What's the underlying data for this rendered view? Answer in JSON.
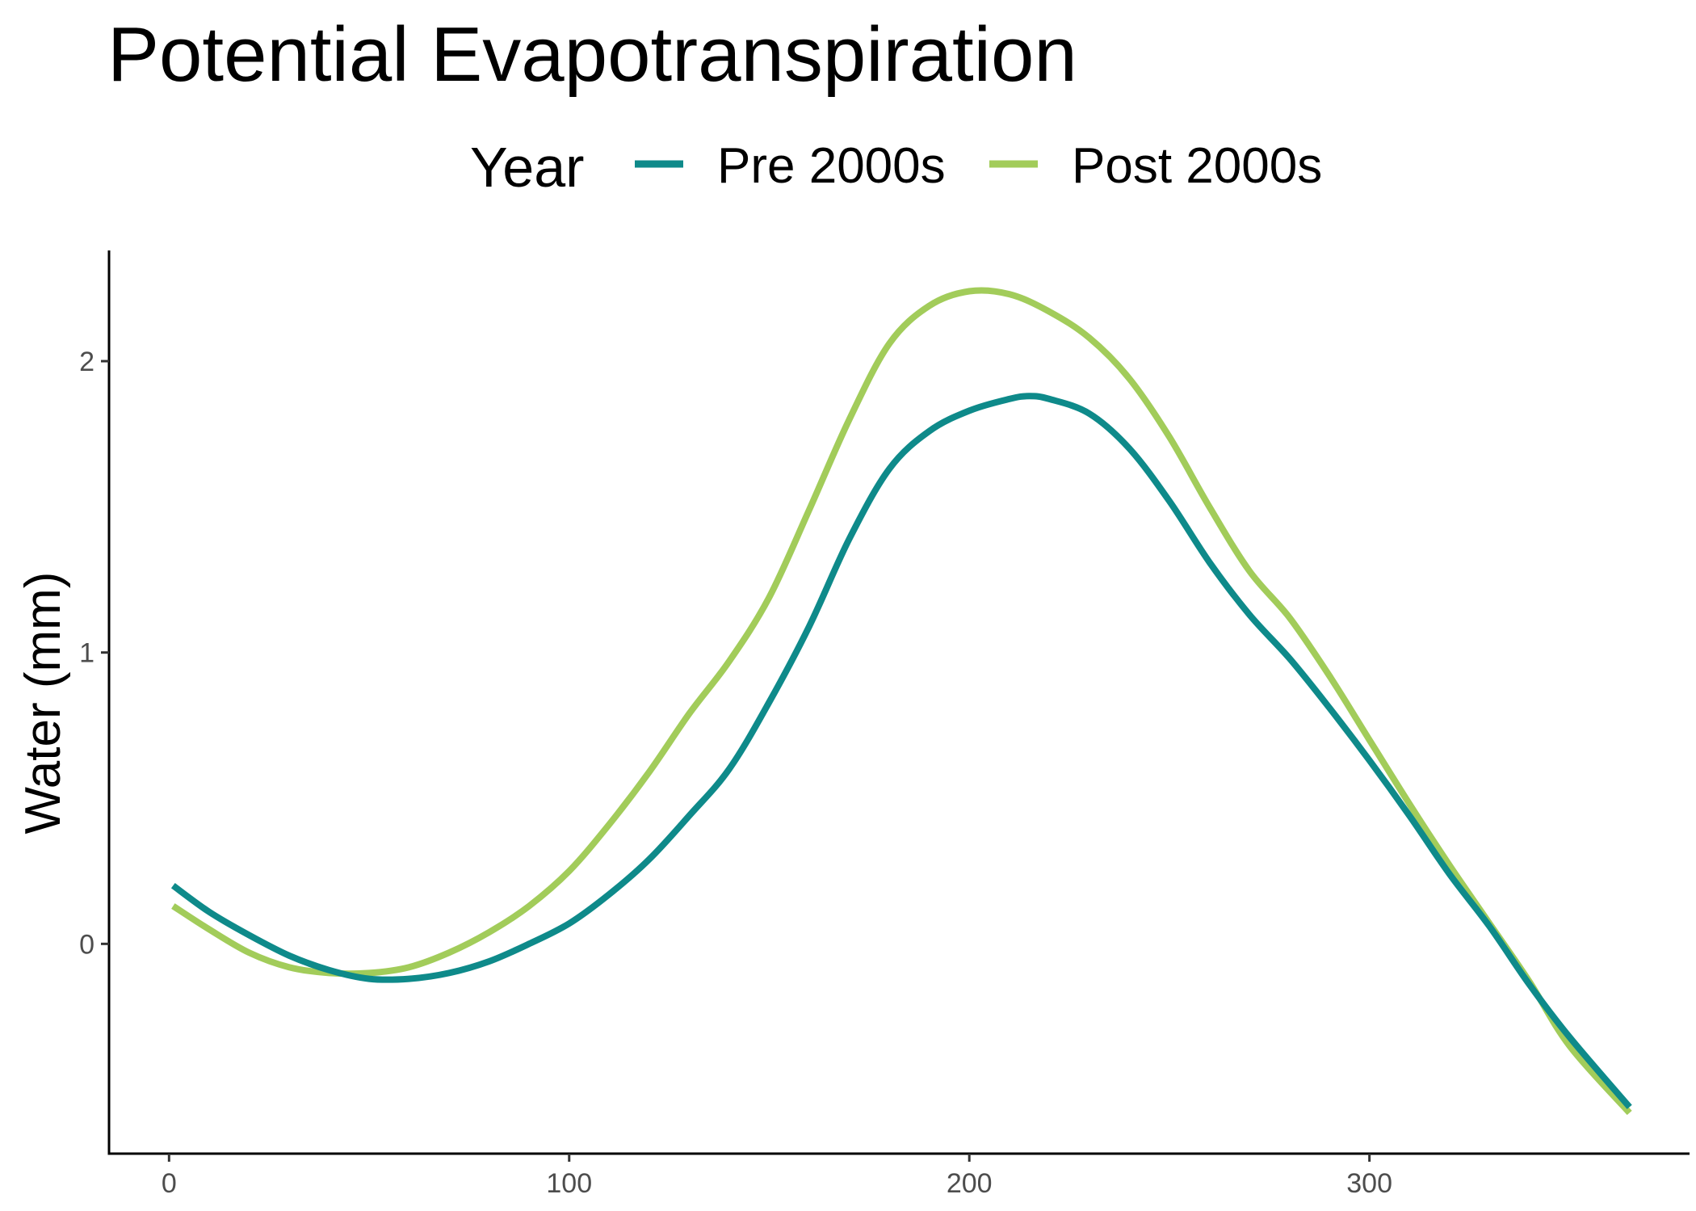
{
  "chart_data": {
    "type": "line",
    "title": "Potential Evapotranspiration",
    "xlabel": "",
    "ylabel": "Water (mm)",
    "xlim": [
      -15,
      380
    ],
    "ylim": [
      -0.72,
      2.38
    ],
    "x_ticks": [
      0,
      100,
      200,
      300
    ],
    "y_ticks": [
      0,
      1,
      2
    ],
    "grid": false,
    "legend": {
      "title": "Year",
      "placement": "top"
    },
    "series": [
      {
        "name": "Pre 2000s",
        "color": "#0e8a8a",
        "x": [
          1,
          10,
          20,
          30,
          40,
          50,
          60,
          70,
          80,
          90,
          100,
          110,
          120,
          130,
          140,
          150,
          160,
          170,
          180,
          190,
          200,
          210,
          215,
          220,
          230,
          240,
          250,
          260,
          270,
          280,
          290,
          300,
          310,
          320,
          330,
          340,
          350,
          365
        ],
        "y": [
          0.2,
          0.11,
          0.03,
          -0.04,
          -0.09,
          -0.12,
          -0.12,
          -0.1,
          -0.06,
          0.0,
          0.07,
          0.17,
          0.29,
          0.44,
          0.6,
          0.83,
          1.09,
          1.39,
          1.63,
          1.76,
          1.83,
          1.87,
          1.88,
          1.87,
          1.82,
          1.7,
          1.52,
          1.31,
          1.13,
          0.98,
          0.81,
          0.63,
          0.44,
          0.24,
          0.06,
          -0.14,
          -0.32,
          -0.56
        ]
      },
      {
        "name": "Post 2000s",
        "color": "#a2cc5a",
        "x": [
          1,
          10,
          20,
          30,
          40,
          50,
          60,
          70,
          80,
          90,
          100,
          110,
          120,
          130,
          140,
          150,
          160,
          170,
          180,
          190,
          200,
          210,
          220,
          230,
          240,
          250,
          260,
          270,
          280,
          290,
          300,
          310,
          320,
          330,
          340,
          350,
          365
        ],
        "y": [
          0.13,
          0.05,
          -0.03,
          -0.08,
          -0.1,
          -0.1,
          -0.08,
          -0.03,
          0.04,
          0.13,
          0.25,
          0.41,
          0.59,
          0.79,
          0.97,
          1.19,
          1.49,
          1.8,
          2.06,
          2.19,
          2.24,
          2.23,
          2.17,
          2.08,
          1.94,
          1.74,
          1.5,
          1.28,
          1.12,
          0.92,
          0.7,
          0.48,
          0.27,
          0.07,
          -0.13,
          -0.35,
          -0.58
        ]
      }
    ]
  }
}
